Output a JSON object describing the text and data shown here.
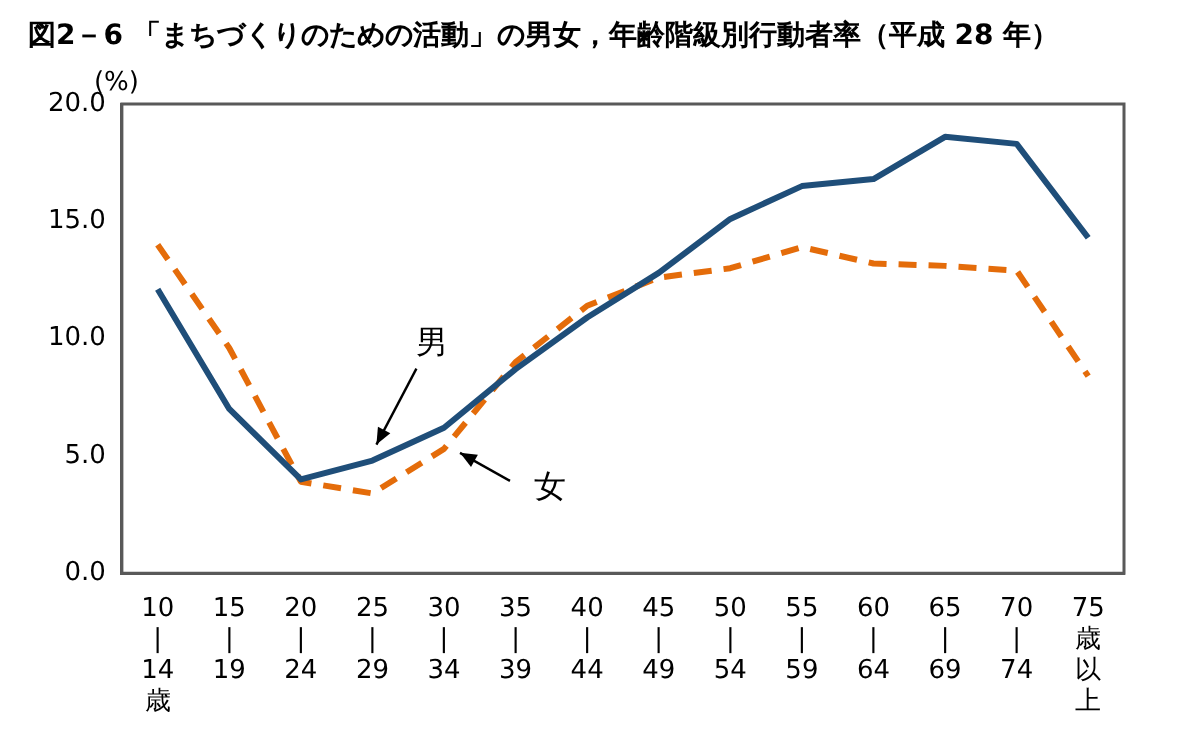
{
  "chart_data": {
    "type": "line",
    "title": "図2－6 「まちづくりのための活動」の男女，年齢階級別行動者率（平成 28 年）",
    "ylabel": "(%)",
    "categories": [
      "10|14歳",
      "15|19",
      "20|24",
      "25|29",
      "30|34",
      "35|39",
      "40|44",
      "45|49",
      "50|54",
      "55|59",
      "60|64",
      "65|69",
      "70|74",
      "75歳以上"
    ],
    "series": [
      {
        "name": "男",
        "color": "#1f4e79",
        "line_style": "solid",
        "values": [
          12.1,
          7.0,
          4.0,
          4.8,
          6.2,
          8.7,
          10.9,
          12.8,
          15.1,
          16.5,
          16.8,
          18.6,
          18.3,
          14.3
        ]
      },
      {
        "name": "女",
        "color": "#e46c0a",
        "line_style": "dashed",
        "values": [
          14.0,
          9.6,
          3.9,
          3.4,
          5.3,
          9.0,
          11.4,
          12.6,
          13.0,
          13.9,
          13.2,
          13.1,
          12.9,
          8.4
        ]
      }
    ],
    "ylim": [
      0,
      20
    ],
    "yticks": [
      {
        "value": 0,
        "label": "0.0"
      },
      {
        "value": 5,
        "label": "5.0"
      },
      {
        "value": 10,
        "label": "10.0"
      },
      {
        "value": 15,
        "label": "15.0"
      },
      {
        "value": 20,
        "label": "20.0"
      }
    ],
    "grid": false,
    "legend": false,
    "marker": "none"
  }
}
